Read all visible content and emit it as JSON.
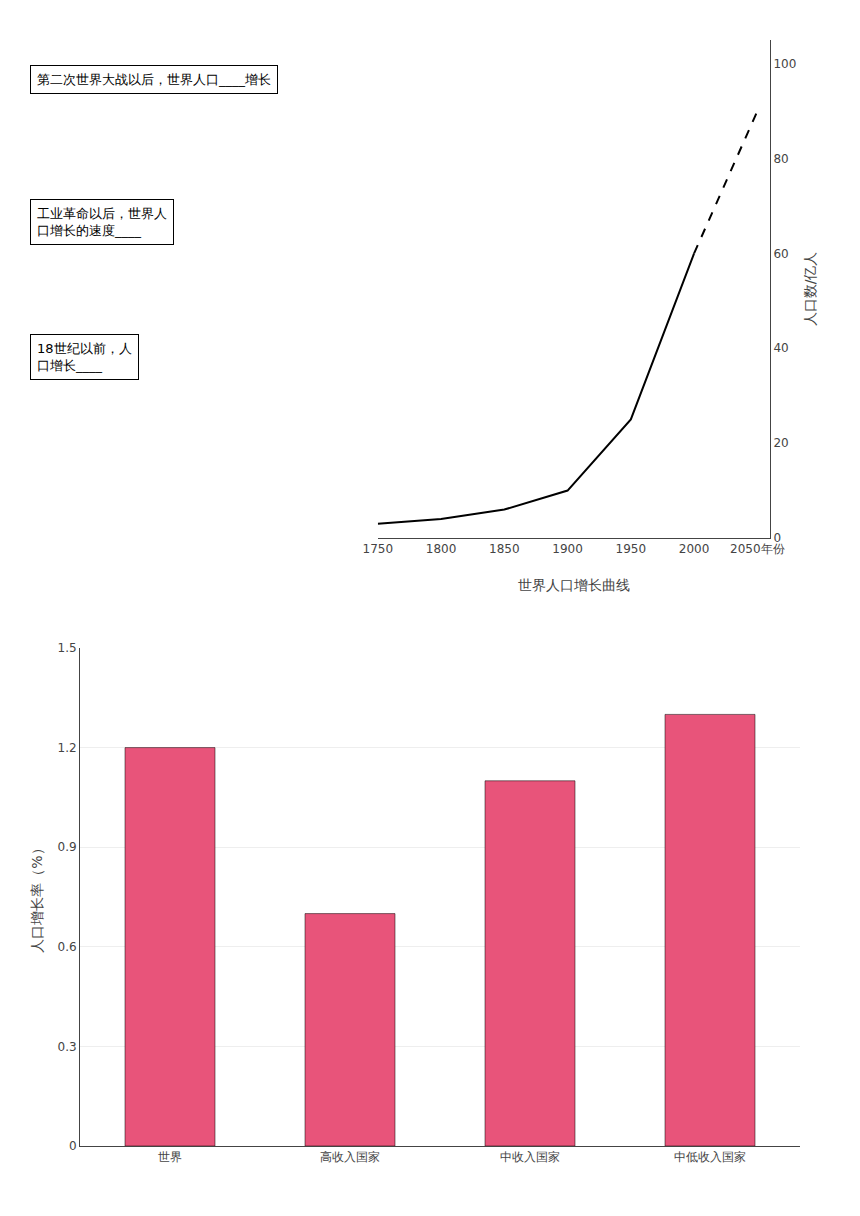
{
  "chart_data": [
    {
      "type": "line",
      "xlabel": "世界人口增长曲线",
      "ylabel": "人口数/亿人",
      "x": [
        1750,
        1800,
        1850,
        1900,
        1950,
        2000,
        2050
      ],
      "series": [
        {
          "color": "#000000",
          "line_style": "solid",
          "values": [
            3,
            4,
            6,
            10,
            25,
            60,
            null
          ]
        },
        {
          "color": "#000000",
          "line_style": "dashed",
          "values": [
            null,
            null,
            null,
            null,
            null,
            60,
            90
          ]
        }
      ],
      "xlim": [
        1750,
        2060
      ],
      "xticks": [
        1750,
        1800,
        1850,
        1900,
        1950,
        2000,
        {
          "value": 2050,
          "label": "2050年份"
        }
      ],
      "ylim": [
        0,
        105
      ],
      "yticks": [
        0,
        20,
        40,
        60,
        80,
        100
      ],
      "grid": false,
      "annotations": [
        "第二次世界大战以后，世界人口____增长",
        "工业革命以后，世界人\n口增长的速度____",
        "18世纪以前，人\n口增长____"
      ]
    },
    {
      "type": "bar",
      "ylabel": "人口增长率（%）",
      "categories": [
        "世界",
        "高收入国家",
        "中收入国家",
        "中低收入国家"
      ],
      "values": [
        1.2,
        0.7,
        1.1,
        1.3
      ],
      "color": "#e8547a",
      "ylim": [
        0,
        1.5
      ],
      "yticks": [
        0,
        0.3,
        0.6,
        0.9,
        1.2,
        1.5
      ],
      "grid": true
    }
  ]
}
